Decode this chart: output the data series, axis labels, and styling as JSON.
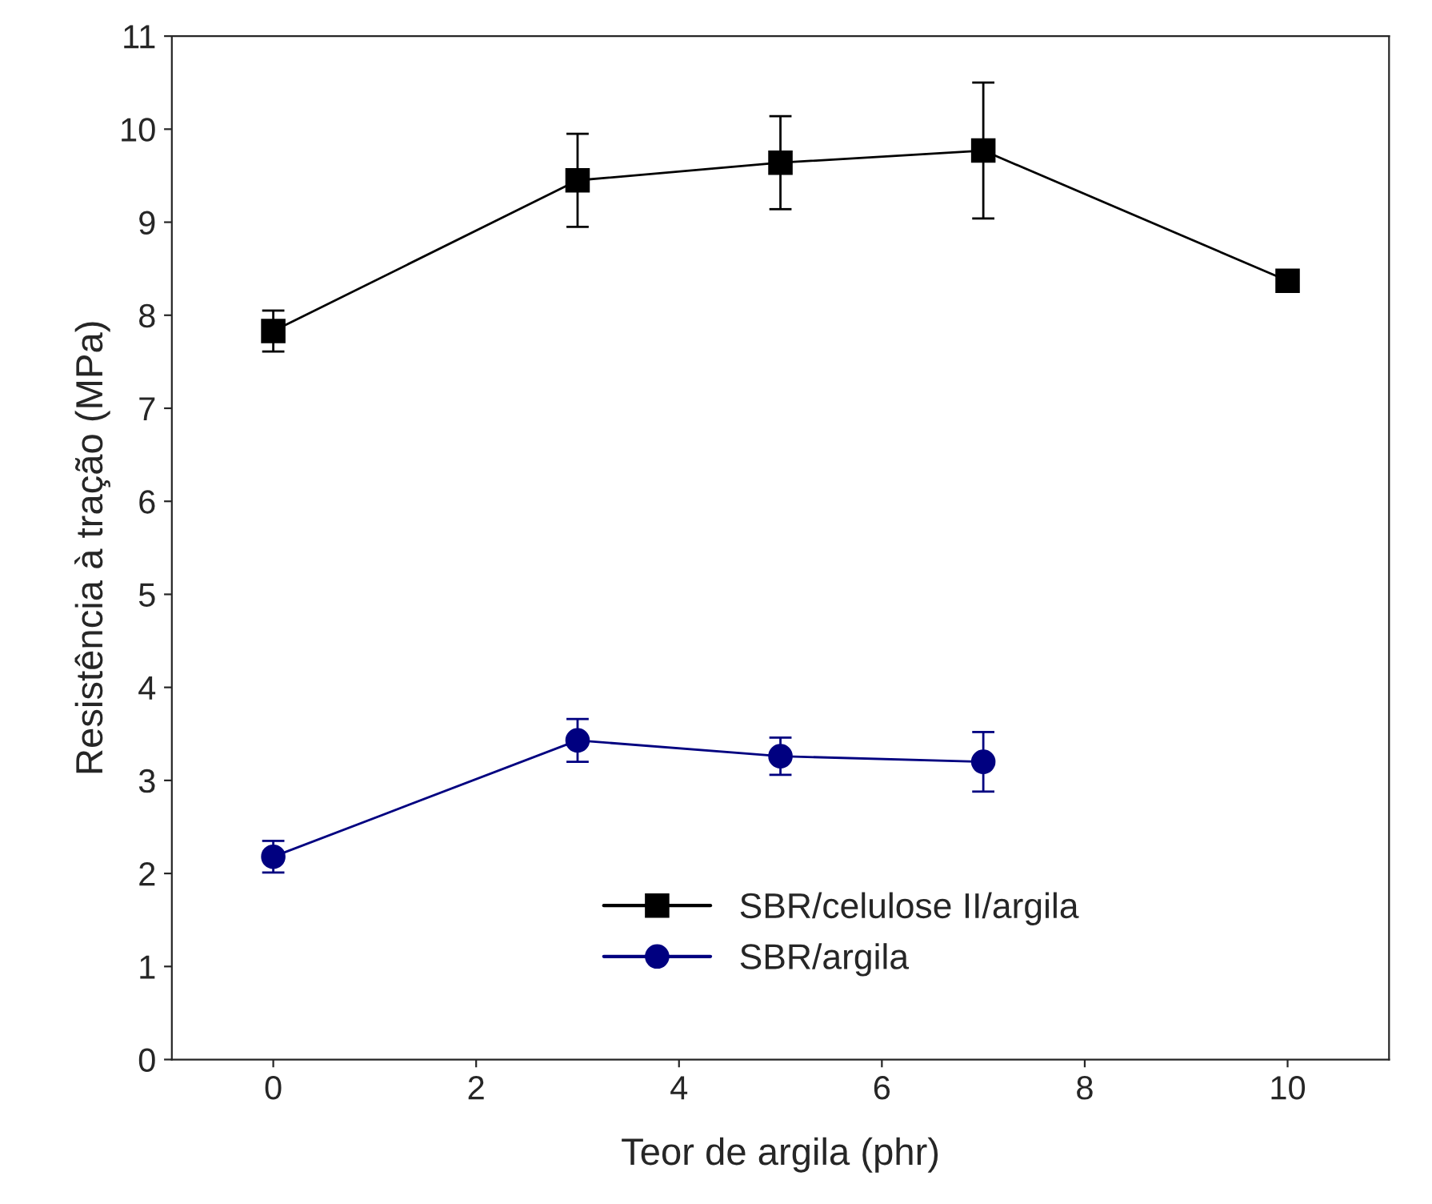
{
  "chart_data": {
    "type": "line",
    "xlabel": "Teor de argila (phr)",
    "ylabel": "Resistência à tração (MPa)",
    "xlim": [
      -1,
      11
    ],
    "xticks": [
      0,
      2,
      4,
      6,
      8,
      10
    ],
    "ylim": [
      0,
      11
    ],
    "yticks": [
      0,
      1,
      2,
      3,
      4,
      5,
      6,
      7,
      8,
      9,
      10,
      11
    ],
    "grid": false,
    "legend": "bottom",
    "line_style": "solid",
    "series": [
      {
        "name": "SBR/celulose II/argila",
        "color": "#000000",
        "marker": "square",
        "x": [
          0,
          3,
          5,
          7,
          10
        ],
        "values": [
          7.83,
          9.45,
          9.64,
          9.77,
          8.37
        ],
        "errors": [
          0.22,
          0.5,
          0.5,
          0.73,
          null
        ]
      },
      {
        "name": "SBR/argila",
        "color": "#000080",
        "marker": "circle",
        "x": [
          0,
          3,
          5,
          7
        ],
        "values": [
          2.18,
          3.43,
          3.26,
          3.2
        ],
        "errors": [
          0.17,
          0.23,
          0.2,
          0.32
        ]
      }
    ]
  }
}
